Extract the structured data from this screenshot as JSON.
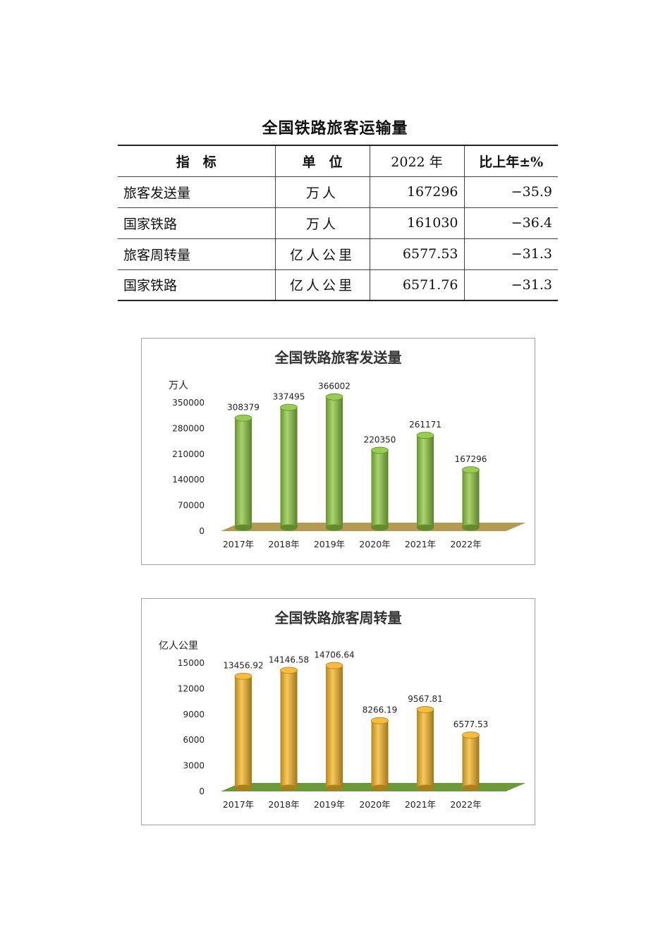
{
  "table": {
    "title": "全国铁路旅客运输量",
    "headers": [
      "指　标",
      "单　位",
      "2022 年",
      "比上年±%"
    ],
    "rows": [
      {
        "name": "旅客发送量",
        "unit": "万人",
        "value": "167296",
        "change": "−35.9",
        "indent": false
      },
      {
        "name": "国家铁路",
        "unit": "万人",
        "value": "161030",
        "change": "−36.4",
        "indent": true
      },
      {
        "name": "旅客周转量",
        "unit": "亿人公里",
        "value": "6577.53",
        "change": "−31.3",
        "indent": false
      },
      {
        "name": "国家铁路",
        "unit": "亿人公里",
        "value": "6571.76",
        "change": "−31.3",
        "indent": true
      }
    ]
  },
  "chart_data": [
    {
      "type": "bar",
      "title": "全国铁路旅客发送量",
      "ylabel": "万人",
      "categories": [
        "2017年",
        "2018年",
        "2019年",
        "2020年",
        "2021年",
        "2022年"
      ],
      "values": [
        308379,
        337495,
        366002,
        220350,
        261171,
        167296
      ],
      "value_labels": [
        "308379",
        "337495",
        "366002",
        "220350",
        "261171",
        "167296"
      ],
      "yticks": [
        0,
        70000,
        140000,
        210000,
        280000,
        350000
      ],
      "ylim": [
        0,
        350000
      ],
      "bar_color": "#8cc63f",
      "floor_color": "#b59a52"
    },
    {
      "type": "bar",
      "title": "全国铁路旅客周转量",
      "ylabel": "亿人公里",
      "categories": [
        "2017年",
        "2018年",
        "2019年",
        "2020年",
        "2021年",
        "2022年"
      ],
      "values": [
        13456.92,
        14146.58,
        14706.64,
        8266.19,
        9567.81,
        6577.53
      ],
      "value_labels": [
        "13456.92",
        "14146.58",
        "14706.64",
        "8266.19",
        "9567.81",
        "6577.53"
      ],
      "yticks": [
        0,
        3000,
        6000,
        9000,
        12000,
        15000
      ],
      "ylim": [
        0,
        15000
      ],
      "bar_color": "#f5b526",
      "floor_color": "#6b9a3a"
    }
  ]
}
